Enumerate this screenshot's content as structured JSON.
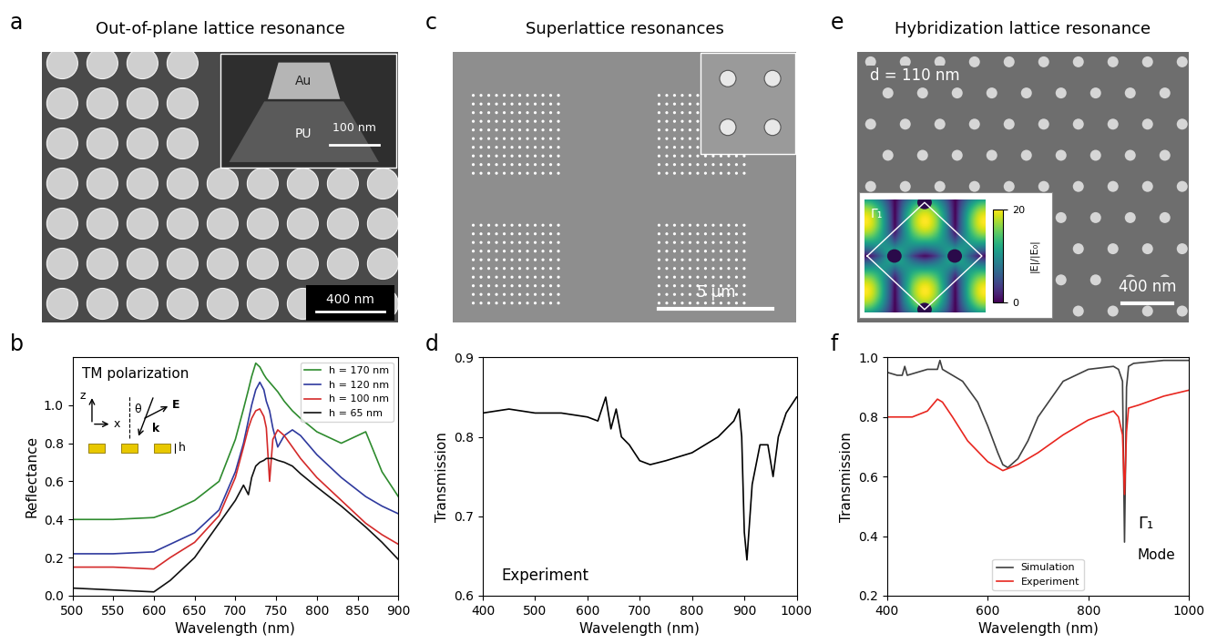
{
  "panels": [
    {
      "label": "a",
      "type": "image",
      "title": "Out-of-plane lattice resonance",
      "scale_bar": "400 nm",
      "inset": {
        "texts": [
          "Au",
          "PU"
        ],
        "scale_bar": "100 nm"
      }
    },
    {
      "label": "c",
      "type": "image",
      "title": "Superlattice resonances",
      "scale_bar": "5 μm"
    },
    {
      "label": "e",
      "type": "image",
      "title": "Hybridization lattice resonance",
      "annotation": "d = 110 nm",
      "scale_bar": "400 nm",
      "inset": {
        "mode": "Γ₁",
        "colorbar_label": "|E|/|E₀|",
        "colorbar_range": [
          0,
          20
        ],
        "colorbar_ticks": [
          0,
          20
        ]
      }
    }
  ],
  "chart_data": [
    {
      "label": "b",
      "type": "line",
      "x_label": "Wavelength (nm)",
      "y_label": "Reflectance",
      "xlim": [
        500,
        900
      ],
      "ylim": [
        0,
        1.25
      ],
      "xticks": [
        500,
        550,
        600,
        650,
        700,
        750,
        800,
        850,
        900
      ],
      "yticks": [
        {
          "value": 0,
          "label": "0.0"
        },
        {
          "value": 0.2,
          "label": "0.2"
        },
        {
          "value": 0.4,
          "label": "0.4"
        },
        {
          "value": 0.6,
          "label": "0.6"
        },
        {
          "value": 0.8,
          "label": "0.8"
        },
        {
          "value": 1.0,
          "label": "1.0"
        }
      ],
      "legend": "upper right",
      "annotations": [
        "TM polarization",
        "z",
        "x",
        "θ",
        "k",
        "E",
        "h"
      ],
      "x": [
        500,
        550,
        600,
        620,
        650,
        680,
        700,
        710,
        716,
        720,
        725,
        730,
        735,
        738,
        742,
        746,
        752,
        760,
        770,
        780,
        800,
        830,
        860,
        880,
        900
      ],
      "series": [
        {
          "name": "h = 170 nm",
          "color": "#2e8b2e",
          "values": [
            0.4,
            0.4,
            0.41,
            0.44,
            0.5,
            0.6,
            0.82,
            0.98,
            1.08,
            1.15,
            1.22,
            1.2,
            1.16,
            1.14,
            1.12,
            1.1,
            1.07,
            1.02,
            0.97,
            0.93,
            0.86,
            0.8,
            0.86,
            0.65,
            0.52
          ]
        },
        {
          "name": "h = 120 nm",
          "color": "#2f3a9e",
          "values": [
            0.22,
            0.22,
            0.23,
            0.27,
            0.33,
            0.45,
            0.65,
            0.8,
            0.92,
            1.0,
            1.08,
            1.12,
            1.08,
            1.02,
            0.97,
            0.88,
            0.78,
            0.84,
            0.87,
            0.84,
            0.74,
            0.62,
            0.52,
            0.47,
            0.43
          ]
        },
        {
          "name": "h = 100 nm",
          "color": "#d42a2a",
          "values": [
            0.15,
            0.15,
            0.14,
            0.2,
            0.28,
            0.42,
            0.62,
            0.78,
            0.88,
            0.93,
            0.97,
            0.98,
            0.94,
            0.88,
            0.6,
            0.82,
            0.87,
            0.84,
            0.78,
            0.72,
            0.62,
            0.5,
            0.38,
            0.32,
            0.27
          ]
        },
        {
          "name": "h = 65 nm",
          "color": "#111111",
          "values": [
            0.04,
            0.03,
            0.02,
            0.08,
            0.2,
            0.38,
            0.5,
            0.58,
            0.53,
            0.62,
            0.68,
            0.7,
            0.71,
            0.72,
            0.72,
            0.72,
            0.71,
            0.7,
            0.68,
            0.64,
            0.57,
            0.47,
            0.36,
            0.28,
            0.19
          ]
        }
      ]
    },
    {
      "label": "d",
      "type": "line",
      "x_label": "Wavelength (nm)",
      "y_label": "Transmission",
      "xlim": [
        400,
        1000
      ],
      "ylim": [
        0.6,
        0.9
      ],
      "xticks": [
        400,
        500,
        600,
        700,
        800,
        900,
        1000
      ],
      "yticks": [
        {
          "value": 0.6,
          "label": "0.6"
        },
        {
          "value": 0.7,
          "label": "0.7"
        },
        {
          "value": 0.8,
          "label": "0.8"
        },
        {
          "value": 0.9,
          "label": "0.9"
        }
      ],
      "annotations": [
        "Experiment"
      ],
      "series": [
        {
          "color": "#000000",
          "x": [
            400,
            450,
            500,
            550,
            600,
            620,
            635,
            645,
            655,
            665,
            680,
            700,
            720,
            750,
            800,
            850,
            880,
            890,
            895,
            900,
            905,
            915,
            930,
            945,
            955,
            965,
            980,
            1000
          ],
          "values": [
            0.83,
            0.835,
            0.83,
            0.83,
            0.825,
            0.82,
            0.85,
            0.81,
            0.835,
            0.8,
            0.79,
            0.77,
            0.765,
            0.77,
            0.78,
            0.8,
            0.82,
            0.835,
            0.8,
            0.68,
            0.645,
            0.74,
            0.79,
            0.79,
            0.75,
            0.8,
            0.83,
            0.85
          ]
        }
      ]
    },
    {
      "label": "f",
      "type": "line",
      "x_label": "Wavelength (nm)",
      "y_label": "Transmission",
      "xlim": [
        400,
        1000
      ],
      "ylim": [
        0.2,
        1.0
      ],
      "xticks": [
        400,
        600,
        800,
        1000
      ],
      "yticks": [
        {
          "value": 0.2,
          "label": "0.2"
        },
        {
          "value": 0.4,
          "label": "0.4"
        },
        {
          "value": 0.6,
          "label": "0.6"
        },
        {
          "value": 0.8,
          "label": "0.8"
        },
        {
          "value": 1.0,
          "label": "1.0"
        }
      ],
      "legend": "lower center",
      "annotations": [
        "Γ₁",
        "Mode"
      ],
      "series": [
        {
          "name": "Simulation",
          "color": "#404040",
          "x": [
            400,
            420,
            430,
            435,
            440,
            460,
            480,
            500,
            505,
            510,
            520,
            550,
            580,
            600,
            620,
            630,
            640,
            660,
            680,
            700,
            750,
            800,
            850,
            860,
            868,
            872,
            876,
            880,
            890,
            950,
            1000
          ],
          "values": [
            0.95,
            0.94,
            0.94,
            0.97,
            0.94,
            0.95,
            0.96,
            0.96,
            0.99,
            0.96,
            0.95,
            0.92,
            0.85,
            0.77,
            0.68,
            0.64,
            0.63,
            0.66,
            0.72,
            0.8,
            0.92,
            0.96,
            0.97,
            0.96,
            0.92,
            0.38,
            0.9,
            0.97,
            0.98,
            0.99,
            0.99
          ]
        },
        {
          "name": "Experiment",
          "color": "#e8261f",
          "x": [
            400,
            450,
            480,
            500,
            510,
            530,
            560,
            600,
            630,
            660,
            700,
            750,
            800,
            850,
            860,
            868,
            872,
            876,
            880,
            900,
            950,
            1000
          ],
          "values": [
            0.8,
            0.8,
            0.82,
            0.86,
            0.85,
            0.8,
            0.72,
            0.65,
            0.62,
            0.64,
            0.68,
            0.74,
            0.79,
            0.82,
            0.8,
            0.74,
            0.54,
            0.75,
            0.83,
            0.84,
            0.87,
            0.89
          ]
        }
      ]
    }
  ]
}
